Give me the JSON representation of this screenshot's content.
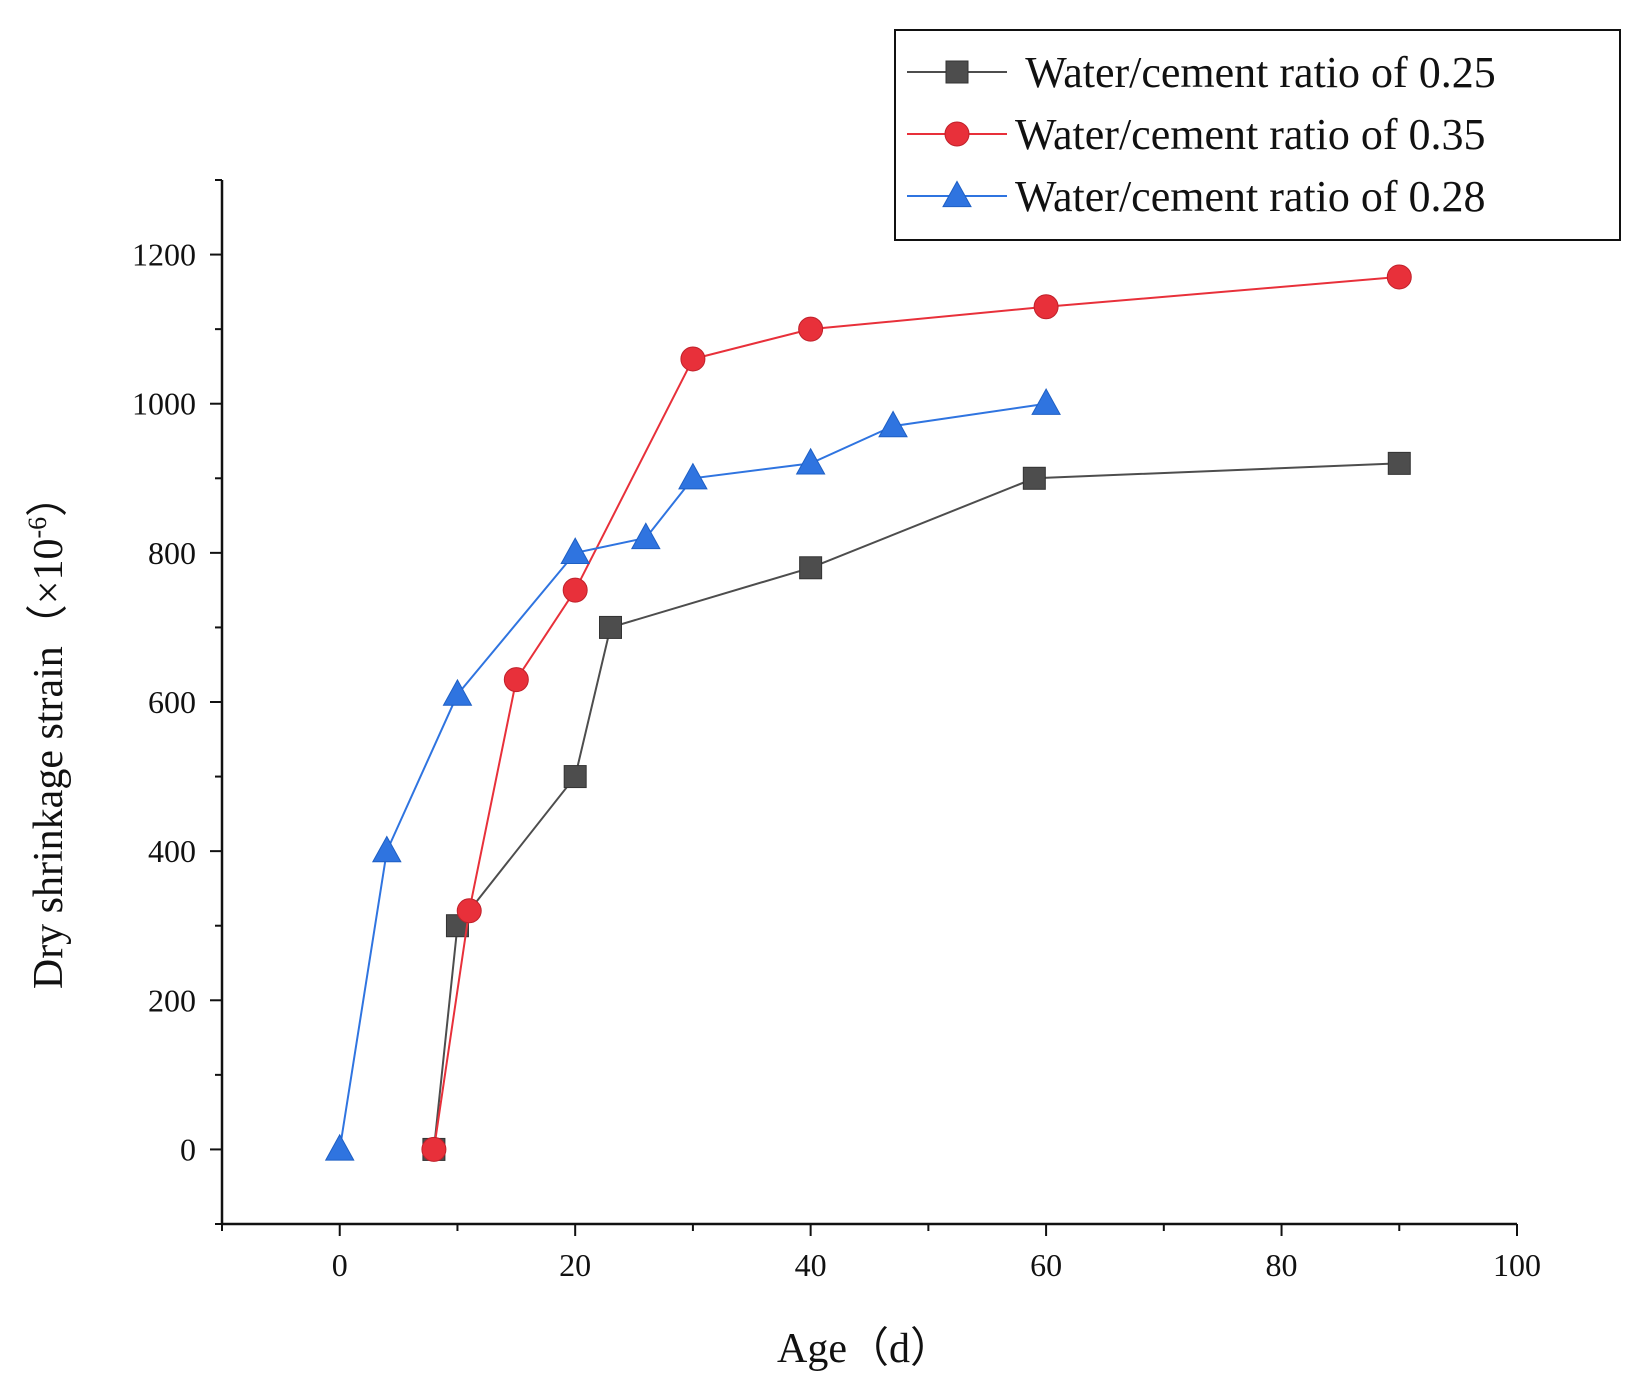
{
  "chart_data": {
    "type": "line",
    "title": "",
    "xlabel": "Age（d）",
    "ylabel": "Dry shrinkage strain（×10",
    "ylabel_superscript": "-6",
    "ylabel_suffix": "）",
    "xlim": [
      -10,
      100
    ],
    "ylim": [
      -100,
      1300
    ],
    "xticks": [
      0,
      20,
      40,
      60,
      80,
      100
    ],
    "yticks": [
      0,
      200,
      400,
      600,
      800,
      1000,
      1200
    ],
    "grid": false,
    "legend_position": "top-right",
    "series": [
      {
        "name": " Water/cement ratio of 0.25",
        "marker": "square",
        "color": "#4d4d4d",
        "x": [
          8,
          10,
          20,
          23,
          40,
          59,
          90
        ],
        "y": [
          0,
          300,
          500,
          700,
          780,
          900,
          920
        ]
      },
      {
        "name": "Water/cement ratio of 0.35",
        "marker": "circle",
        "color": "#e8303a",
        "x": [
          8,
          11,
          15,
          20,
          30,
          40,
          60,
          90
        ],
        "y": [
          0,
          320,
          630,
          750,
          1060,
          1100,
          1130,
          1170
        ]
      },
      {
        "name": "Water/cement ratio of 0.28",
        "marker": "triangle",
        "color": "#2f74e0",
        "x": [
          0,
          4,
          10,
          20,
          26,
          30,
          40,
          47,
          60
        ],
        "y": [
          0,
          400,
          610,
          800,
          820,
          900,
          920,
          970,
          1000
        ]
      }
    ]
  }
}
